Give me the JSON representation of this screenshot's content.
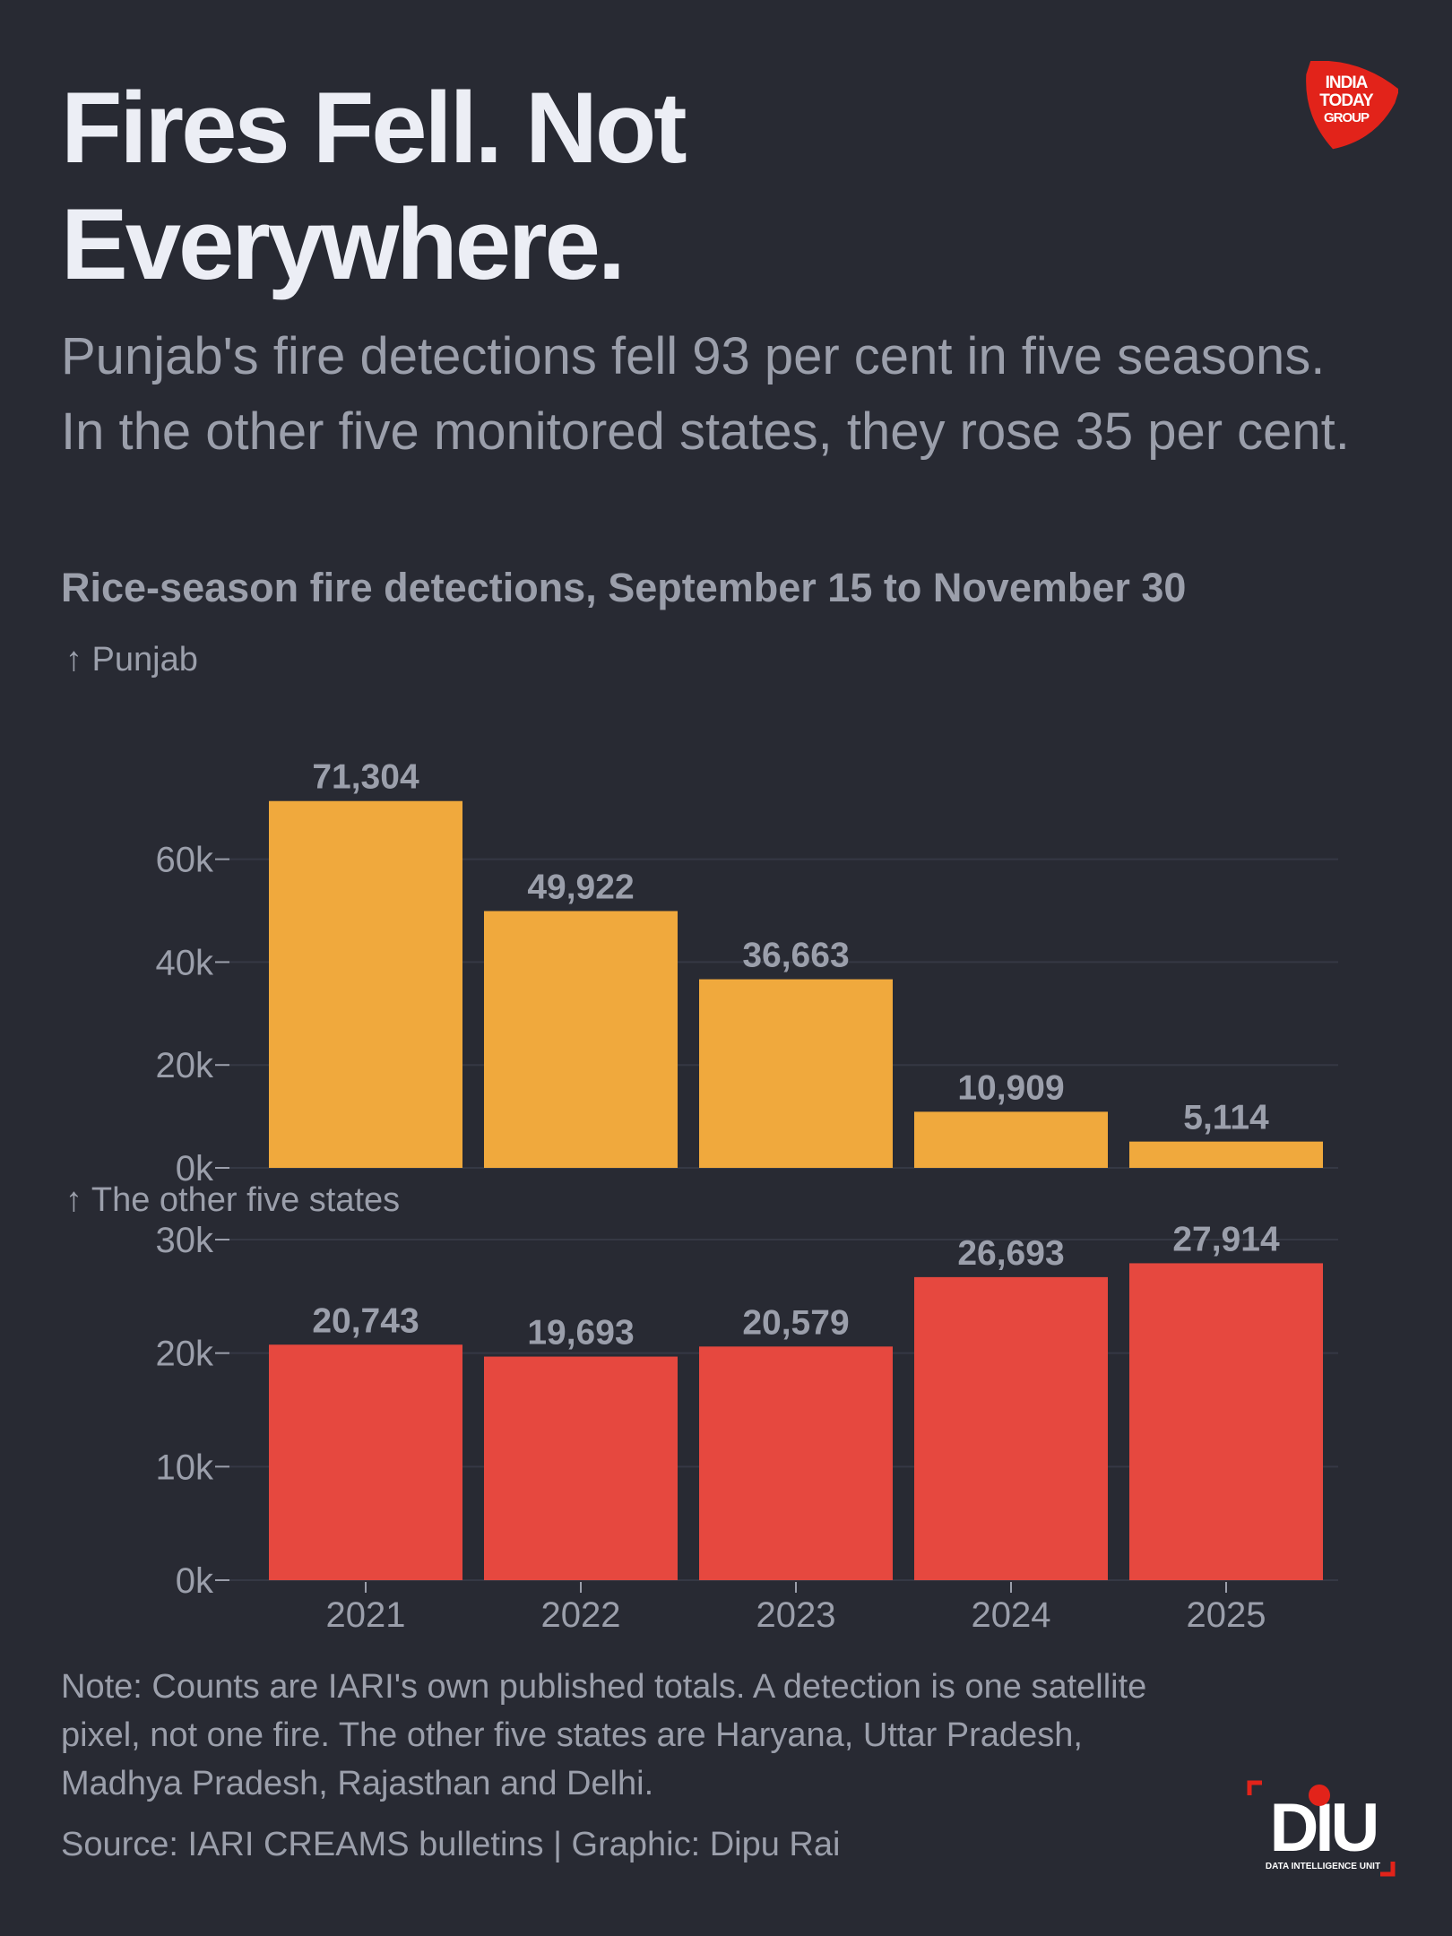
{
  "header": {
    "title": "Fires Fell. Not Everywhere.",
    "subtitle": "Punjab's fire detections fell 93 per cent in five seasons. In the other five monitored states, they rose 35 per cent.",
    "chart_heading": "Rice-season fire detections, September 15 to November 30",
    "publisher_logo_text": "INDIA TODAY GROUP"
  },
  "colors": {
    "background": "#282a33",
    "punjab_bar": "#f0a93d",
    "other_states_bar": "#e6483f",
    "text_muted": "#9b9fab",
    "title": "#eceef5",
    "brand_red": "#e2231a"
  },
  "chart_data": [
    {
      "type": "bar",
      "panel_label": "↑ Punjab",
      "categories": [
        "2021",
        "2022",
        "2023",
        "2024",
        "2025"
      ],
      "values": [
        71304,
        49922,
        36663,
        10909,
        5114
      ],
      "data_labels": [
        "71,304",
        "49,922",
        "36,663",
        "10,909",
        "5,114"
      ],
      "ylim": [
        0,
        73000
      ],
      "yticks": [
        0,
        20000,
        40000,
        60000
      ],
      "ytick_labels": [
        "0k",
        "20k",
        "40k",
        "60k"
      ],
      "grid": true,
      "color": "#f0a93d"
    },
    {
      "type": "bar",
      "panel_label": "↑ The other five states",
      "categories": [
        "2021",
        "2022",
        "2023",
        "2024",
        "2025"
      ],
      "values": [
        20743,
        19693,
        20579,
        26693,
        27914
      ],
      "data_labels": [
        "20,743",
        "19,693",
        "20,579",
        "26,693",
        "27,914"
      ],
      "ylim": [
        0,
        30000
      ],
      "yticks": [
        0,
        10000,
        20000,
        30000
      ],
      "ytick_labels": [
        "0k",
        "10k",
        "20k",
        "30k"
      ],
      "grid": true,
      "color": "#e6483f"
    }
  ],
  "footer": {
    "note": "Note: Counts are IARI's own published totals. A detection is one satellite pixel, not one fire. The other five states are Haryana, Uttar Pradesh, Madhya Pradesh, Rajasthan and Delhi.",
    "source": "Source: IARI CREAMS bulletins | Graphic: Dipu Rai",
    "unit_logo_text": "DIU",
    "unit_logo_caption": "DATA INTELLIGENCE UNIT"
  }
}
